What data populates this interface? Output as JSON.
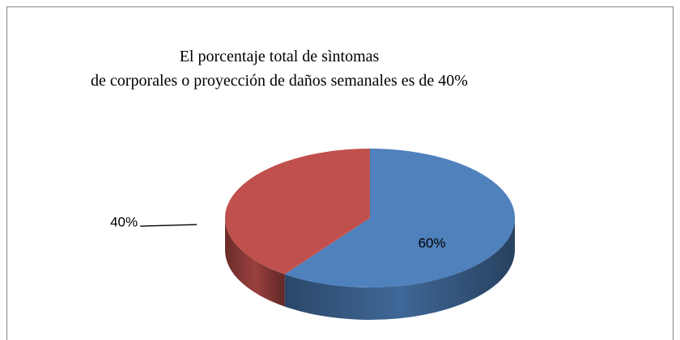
{
  "chart_data": {
    "type": "pie3d",
    "title": [
      "El porcentaje total de sìntomas",
      "de corporales o proyección de daños semanales es de 40%"
    ],
    "values": [
      60,
      40
    ],
    "value_labels": [
      "60%",
      "40%"
    ],
    "colors": [
      "#4f81bd",
      "#c0504d"
    ]
  }
}
